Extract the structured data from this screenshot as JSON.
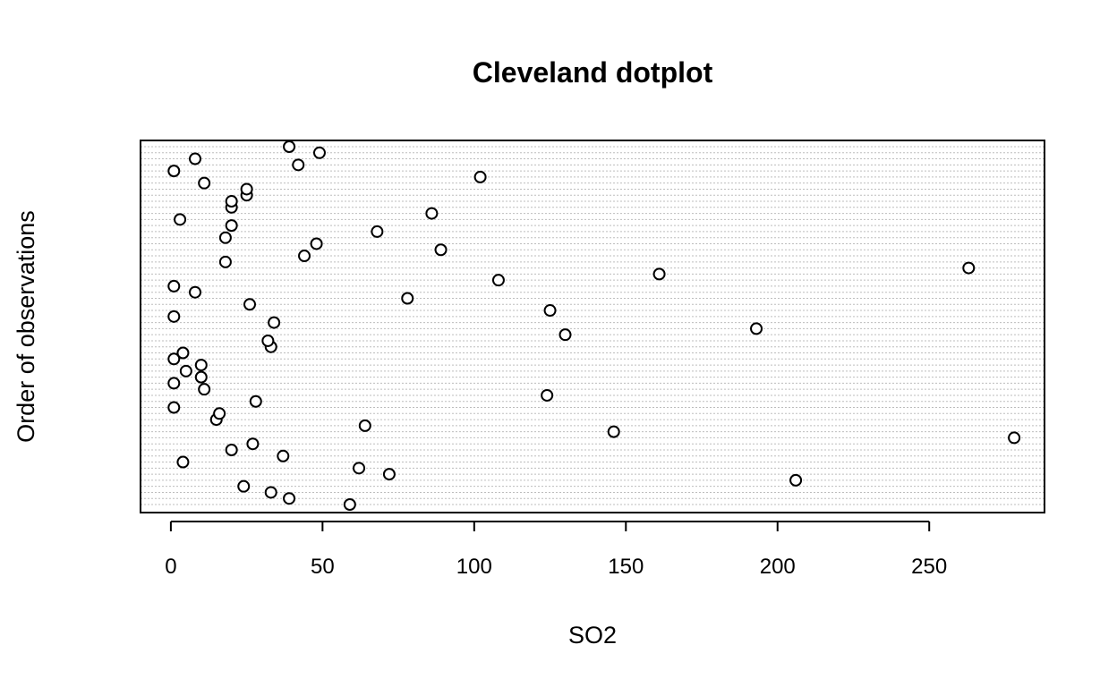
{
  "chart_data": {
    "type": "scatter",
    "title": "Cleveland dotplot",
    "xlabel": "SO2",
    "ylabel": "Order of observations",
    "xlim": [
      -10,
      288
    ],
    "x_ticks": [
      0,
      50,
      100,
      150,
      200,
      250
    ],
    "x_tick_labels": [
      "0",
      "50",
      "100",
      "150",
      "200",
      "250"
    ],
    "grid": "dotted horizontal lines, one per observation",
    "marker": "open circle",
    "series": [
      {
        "values": [
          59,
          39,
          33,
          24,
          206,
          72,
          62,
          4,
          37,
          20,
          27,
          278,
          146,
          64,
          15,
          16,
          1,
          28,
          124,
          11,
          1,
          10,
          5,
          10,
          1,
          4,
          33,
          32,
          130,
          193,
          34,
          1,
          125,
          26,
          78,
          8,
          1,
          108,
          161,
          263,
          18,
          44,
          89,
          48,
          18,
          68,
          20,
          3,
          86,
          20,
          20,
          25,
          25,
          11,
          102,
          1,
          42,
          8,
          49,
          39
        ]
      }
    ]
  }
}
